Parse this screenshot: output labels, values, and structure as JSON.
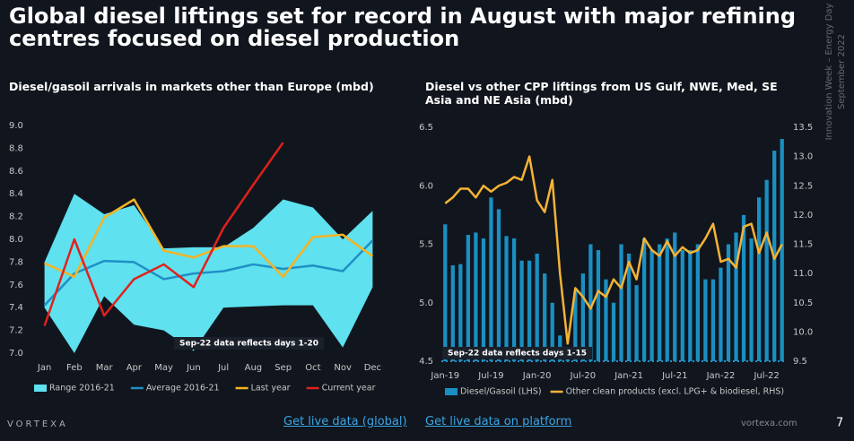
{
  "title": "Global diesel liftings set for record in August with major refining centres focused on diesel production",
  "side_text": [
    "Innovation Week – Energy Day",
    "September 2022"
  ],
  "chart_data": [
    {
      "type": "line",
      "title": "Diesel/gasoil arrivals in markets other than Europe (mbd)",
      "categories": [
        "Jan",
        "Feb",
        "Mar",
        "Apr",
        "May",
        "Jun",
        "Jul",
        "Aug",
        "Sep",
        "Oct",
        "Nov",
        "Dec"
      ],
      "ylim": [
        7.0,
        9.0
      ],
      "yticks": [
        {
          "value": 7.0,
          "label": "7.0"
        },
        7.2,
        7.4,
        7.6,
        7.8,
        {
          "value": 8.0,
          "label": "8.0"
        },
        8.2,
        8.4,
        8.6,
        8.8,
        {
          "value": 9.0,
          "label": "9.0"
        }
      ],
      "annotation": "Sep-22 data reflects days 1-20",
      "series": [
        {
          "name": "Range 2016-21",
          "type": "range",
          "color": "#5fe1ef",
          "high": [
            7.8,
            8.4,
            8.22,
            8.3,
            7.92,
            7.93,
            7.93,
            8.1,
            8.35,
            8.28,
            8.0,
            8.25
          ],
          "low": [
            7.4,
            7.0,
            7.5,
            7.25,
            7.2,
            7.02,
            7.4,
            7.41,
            7.42,
            7.42,
            7.05,
            7.58
          ]
        },
        {
          "name": "Average 2016-21",
          "type": "line",
          "color": "#1f8fc6",
          "values": [
            7.42,
            7.7,
            7.81,
            7.8,
            7.65,
            7.7,
            7.72,
            7.78,
            7.74,
            7.77,
            7.72,
            7.99
          ]
        },
        {
          "name": "Last year",
          "type": "line",
          "color": "#f5b324",
          "values": [
            7.79,
            7.67,
            8.19,
            8.35,
            7.9,
            7.84,
            7.94,
            7.94,
            7.67,
            8.02,
            8.04,
            7.85
          ]
        },
        {
          "name": "Current year",
          "type": "line",
          "color": "#e2201b",
          "values": [
            7.24,
            8.0,
            7.33,
            7.65,
            7.78,
            7.58,
            8.1,
            8.48,
            8.85,
            null,
            null,
            null
          ]
        }
      ]
    },
    {
      "type": "bar",
      "title": "Diesel vs other CPP liftings from US Gulf, NWE, Med, SE Asia and NE Asia (mbd)",
      "categories": [
        "Jan-19",
        null,
        null,
        null,
        null,
        null,
        "Jul-19",
        null,
        null,
        null,
        null,
        null,
        "Jan-20",
        null,
        null,
        null,
        null,
        null,
        "Jul-20",
        null,
        null,
        null,
        null,
        null,
        "Jan-21",
        null,
        null,
        null,
        null,
        null,
        "Jul-21",
        null,
        null,
        null,
        null,
        null,
        "Jan-22",
        null,
        null,
        null,
        null,
        null,
        "Jul-22",
        null,
        null
      ],
      "ylim": [
        4.5,
        6.5
      ],
      "yticks": [
        4.5,
        {
          "value": 5.0,
          "label": "5.0"
        },
        5.5,
        {
          "value": 6.0,
          "label": "6.0"
        },
        6.5
      ],
      "y2lim": [
        9.5,
        13.5
      ],
      "y2ticks": [
        9.5,
        {
          "value": 10.0,
          "label": "10.0"
        },
        10.5,
        {
          "value": 11.0,
          "label": "11.0"
        },
        11.5,
        {
          "value": 12.0,
          "label": "12.0"
        },
        12.5,
        {
          "value": 13.0,
          "label": "13.0"
        },
        13.5
      ],
      "annotation": "Sep-22 data reflects days 1-15",
      "series": [
        {
          "name": "Diesel/Gasoil (LHS)",
          "type": "bar",
          "color": "#1a8fc2",
          "values": [
            5.67,
            5.32,
            5.33,
            5.58,
            5.6,
            5.55,
            5.9,
            5.8,
            5.57,
            5.55,
            5.36,
            5.36,
            5.42,
            5.25,
            5.0,
            4.72,
            4.6,
            5.1,
            5.25,
            5.5,
            5.45,
            5.2,
            5.0,
            5.5,
            5.42,
            5.15,
            5.55,
            5.45,
            5.5,
            5.55,
            5.6,
            5.45,
            5.45,
            5.5,
            5.2,
            5.2,
            5.3,
            5.5,
            5.6,
            5.75,
            5.55,
            5.9,
            6.05,
            6.3,
            6.4
          ]
        },
        {
          "name": "Other clean products (excl. LPG+ & biodiesel, RHS)",
          "type": "line",
          "axis": "y2",
          "color": "#f5b335",
          "values": [
            12.2,
            12.3,
            12.45,
            12.45,
            12.3,
            12.5,
            12.4,
            12.5,
            12.55,
            12.65,
            12.6,
            13.0,
            12.25,
            12.05,
            12.6,
            11.0,
            9.8,
            10.75,
            10.6,
            10.4,
            10.7,
            10.6,
            10.9,
            10.75,
            11.2,
            10.9,
            11.6,
            11.4,
            11.3,
            11.55,
            11.3,
            11.45,
            11.35,
            11.4,
            11.6,
            11.85,
            11.2,
            11.25,
            11.1,
            11.8,
            11.85,
            11.35,
            11.7,
            11.25,
            11.5
          ]
        }
      ]
    }
  ],
  "footer": {
    "brand": "VORTEXA",
    "link_global": "Get live data (global)",
    "link_platform": "Get live data on platform",
    "site": "vortexa.com",
    "page": "7"
  }
}
